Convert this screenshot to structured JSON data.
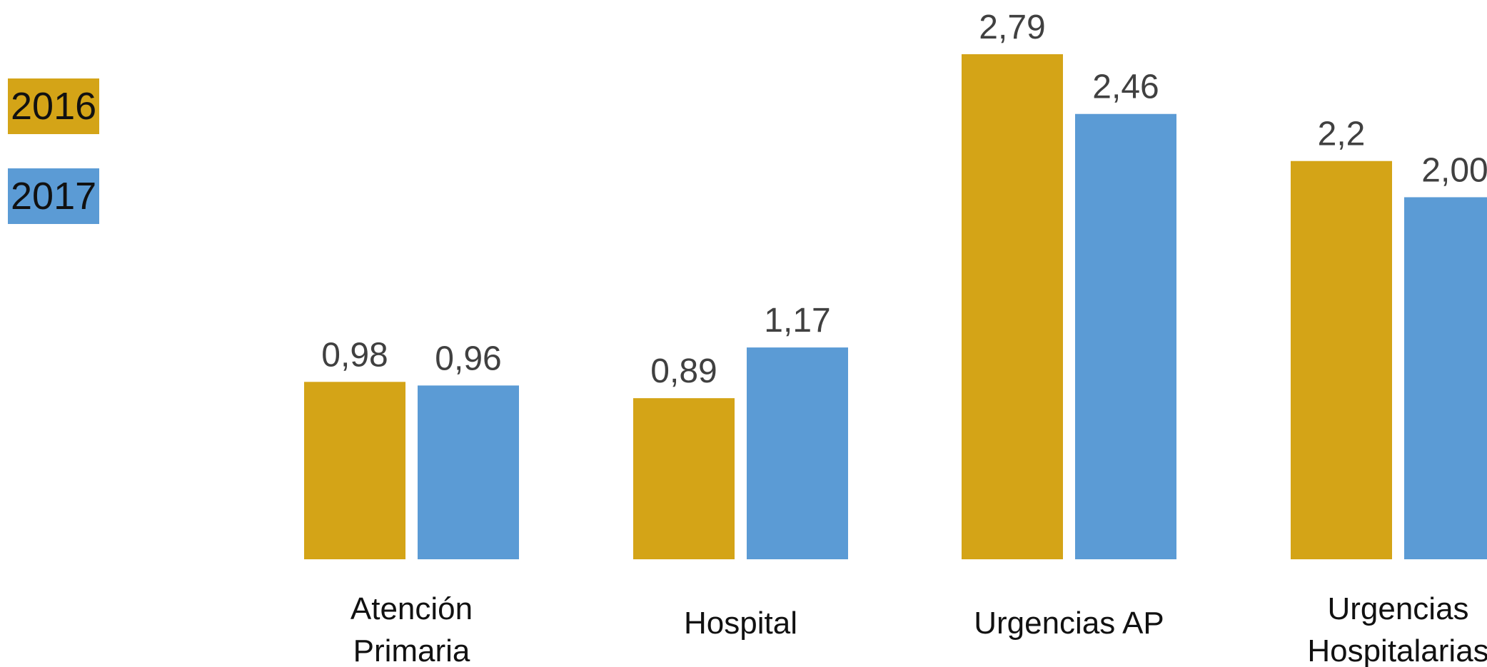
{
  "legend": [
    {
      "label": "2016",
      "color": "#D4A417"
    },
    {
      "label": "2017",
      "color": "#5B9BD5"
    }
  ],
  "chart_data": {
    "type": "bar",
    "categories": [
      [
        "Atención",
        "Primaria"
      ],
      [
        "Hospital"
      ],
      [
        "Urgencias AP"
      ],
      [
        "Urgencias",
        "Hospitalarias"
      ]
    ],
    "series": [
      {
        "name": "2016",
        "color": "#D4A417",
        "values": [
          0.98,
          0.89,
          2.79,
          2.2
        ],
        "labels": [
          "0,98",
          "0,89",
          "2,79",
          "2,2"
        ]
      },
      {
        "name": "2017",
        "color": "#5B9BD5",
        "values": [
          0.96,
          1.17,
          2.46,
          2.0
        ],
        "labels": [
          "0,96",
          "1,17",
          "2,46",
          "2,00"
        ]
      }
    ],
    "ylim": [
      0,
      2.79
    ],
    "grid": false,
    "legend_position": "top-left"
  }
}
